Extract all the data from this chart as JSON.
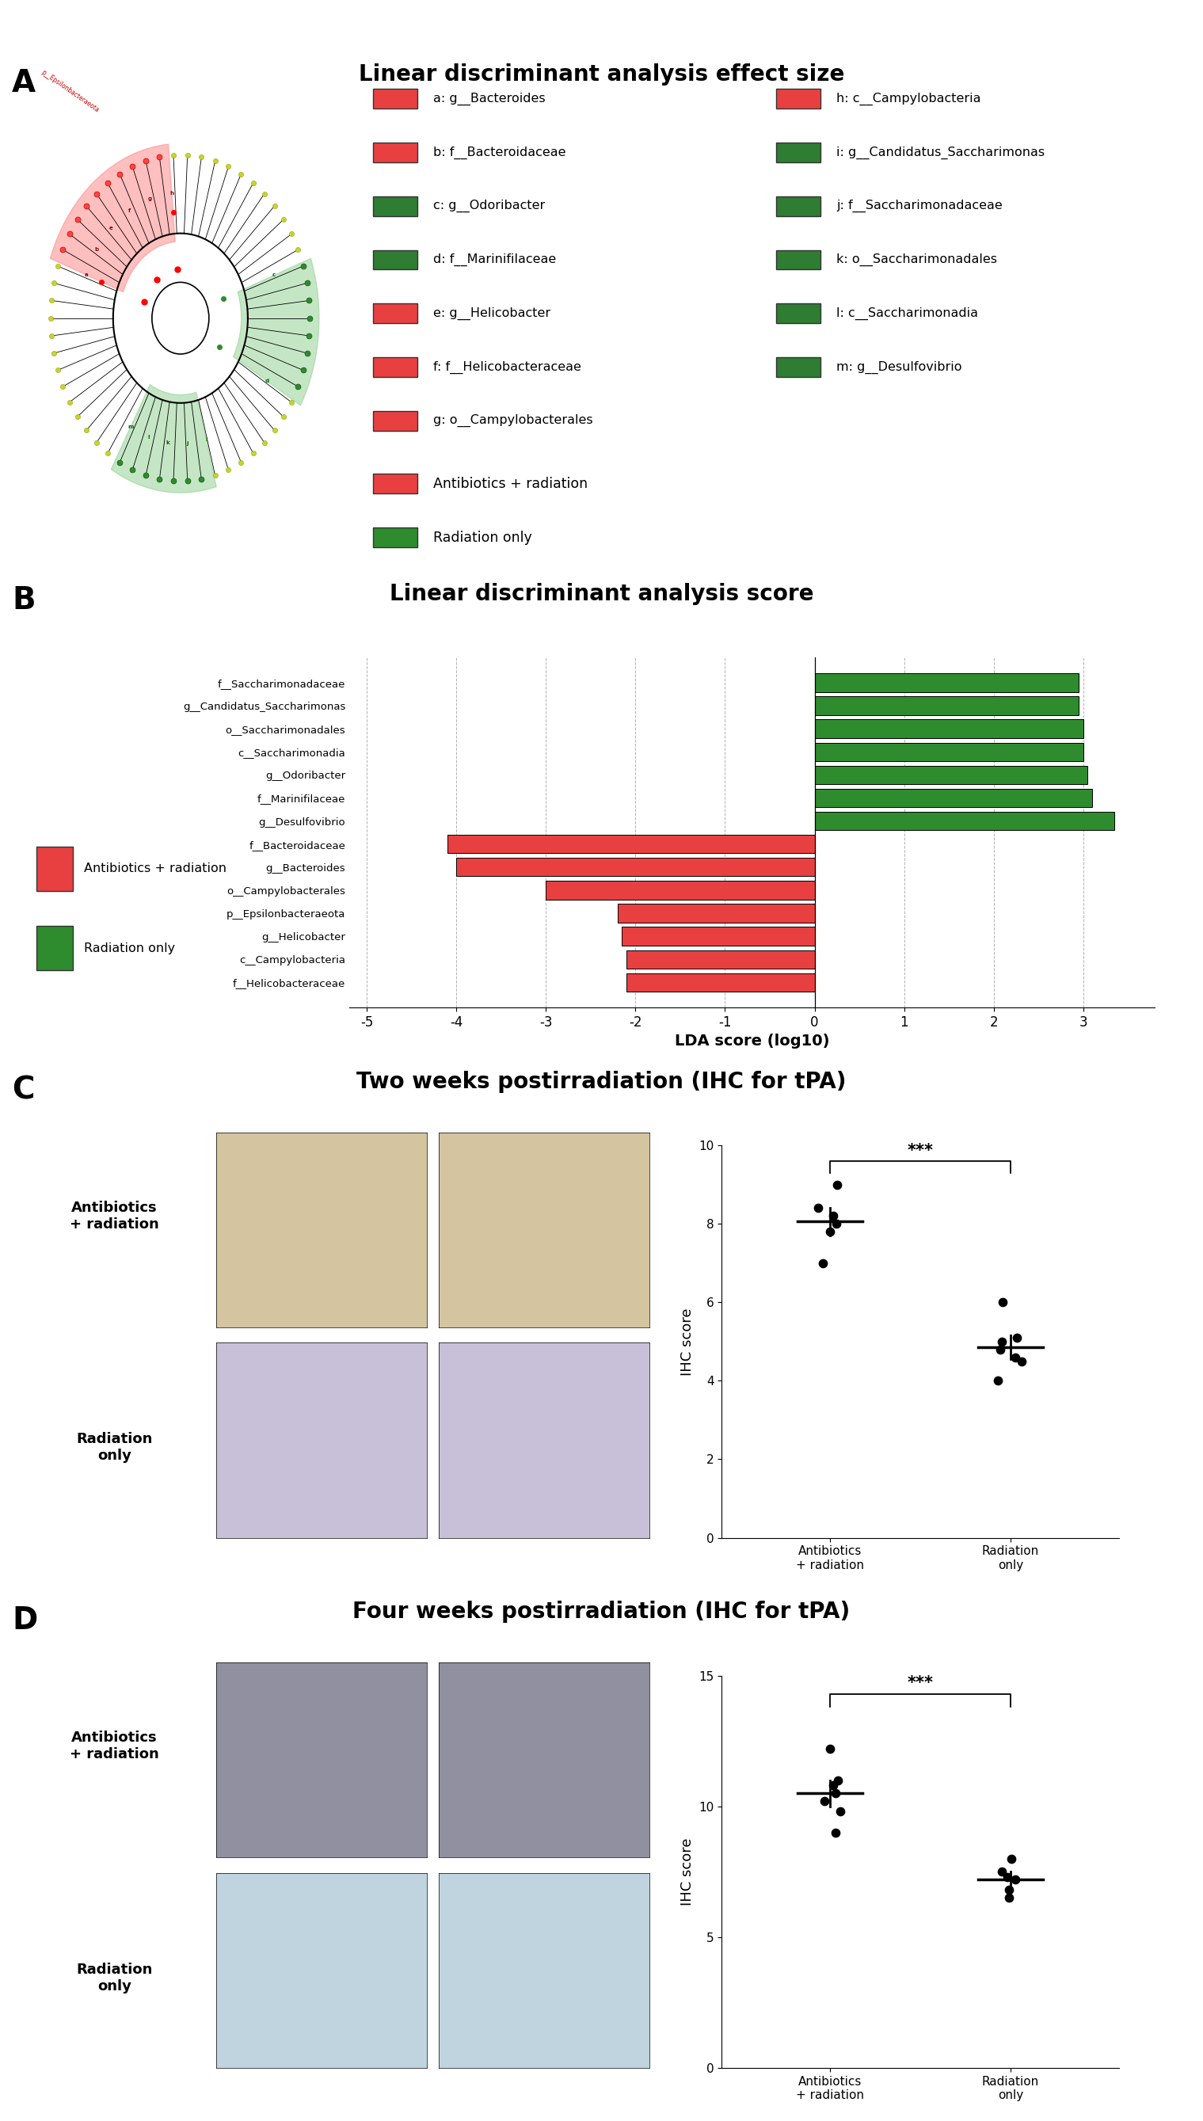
{
  "title_A": "Linear discriminant analysis effect size",
  "title_B": "Linear discriminant analysis score",
  "title_C": "Two weeks postirradiation (IHC for tPA)",
  "title_D": "Four weeks postirradiation (IHC for tPA)",
  "legend_left": [
    "a: g__Bacteroides",
    "b: f__Bacteroidaceae",
    "c: g__Odoribacter",
    "d: f__Marinifilaceae",
    "e: g__Helicobacter",
    "f: f__Helicobacteraceae",
    "g: o__Campylobacterales"
  ],
  "legend_right": [
    "h: c__Campylobacteria",
    "i: g__Candidatus_Saccharimonas",
    "j: f__Saccharimonadaceae",
    "k: o__Saccharimonadales",
    "l: c__Saccharimonadia",
    "m: g__Desulfovibrio"
  ],
  "legend_left_colors": [
    "#e84040",
    "#e84040",
    "#2e7d32",
    "#2e7d32",
    "#e84040",
    "#e84040",
    "#e84040"
  ],
  "legend_right_colors": [
    "#e84040",
    "#2e7d32",
    "#2e7d32",
    "#2e7d32",
    "#2e7d32",
    "#2e7d32"
  ],
  "bar_labels_top": [
    "g__Desulfovibrio",
    "f__Marinifilaceae",
    "g__Odoribacter",
    "c__Saccharimonadia",
    "o__Saccharimonadales",
    "g__Candidatus_Saccharimonas",
    "f__Saccharimonadaceae"
  ],
  "bar_labels_bottom": [
    "f__Helicobacteraceae",
    "c__Campylobacteria",
    "g__Helicobacter",
    "p__Epsilonbacteraeota",
    "o__Campylobacterales",
    "g__Bacteroides",
    "f__Bacteroidaceae"
  ],
  "bar_values_top": [
    3.35,
    3.1,
    3.05,
    3.0,
    3.0,
    2.95,
    2.95
  ],
  "bar_values_bottom": [
    -2.1,
    -2.1,
    -2.15,
    -2.2,
    -3.0,
    -4.0,
    -4.1
  ],
  "bar_color_green": "#2e8b2e",
  "bar_color_red": "#e84040",
  "xlim": [
    -5.2,
    3.8
  ],
  "xticks": [
    -5,
    -4,
    -3,
    -2,
    -1,
    0,
    1,
    2,
    3
  ],
  "xlabel_B": "LDA score (log10)",
  "legend_group1": "Antibiotics + radiation",
  "legend_group2": "Radiation only",
  "color_red": "#e84040",
  "color_green": "#2e8b2e",
  "ylabel_C": "IHC score",
  "ylabel_D": "IHC score",
  "group1_data_C": [
    9.0,
    8.4,
    8.2,
    8.0,
    7.8,
    7.0
  ],
  "group2_data_C": [
    6.0,
    5.1,
    5.0,
    4.8,
    4.6,
    4.5,
    4.0
  ],
  "group1_mean_C": 8.07,
  "group2_mean_C": 4.86,
  "group1_sem_C": [
    7.7,
    8.4
  ],
  "group2_sem_C": [
    4.55,
    5.15
  ],
  "group1_data_D": [
    12.2,
    11.0,
    10.8,
    10.5,
    10.2,
    9.8,
    9.0
  ],
  "group2_data_D": [
    8.0,
    7.5,
    7.3,
    7.2,
    6.8,
    6.5
  ],
  "group1_mean_D": 10.5,
  "group2_mean_D": 7.2,
  "group1_sem_D": [
    10.0,
    11.0
  ],
  "group2_sem_D": [
    6.9,
    7.5
  ],
  "ylim_C": [
    0,
    10
  ],
  "ylim_D": [
    0,
    15
  ],
  "yticks_C": [
    0,
    2,
    4,
    6,
    8,
    10
  ],
  "yticks_D": [
    0,
    5,
    10,
    15
  ],
  "sig_C": "***",
  "sig_D": "***"
}
